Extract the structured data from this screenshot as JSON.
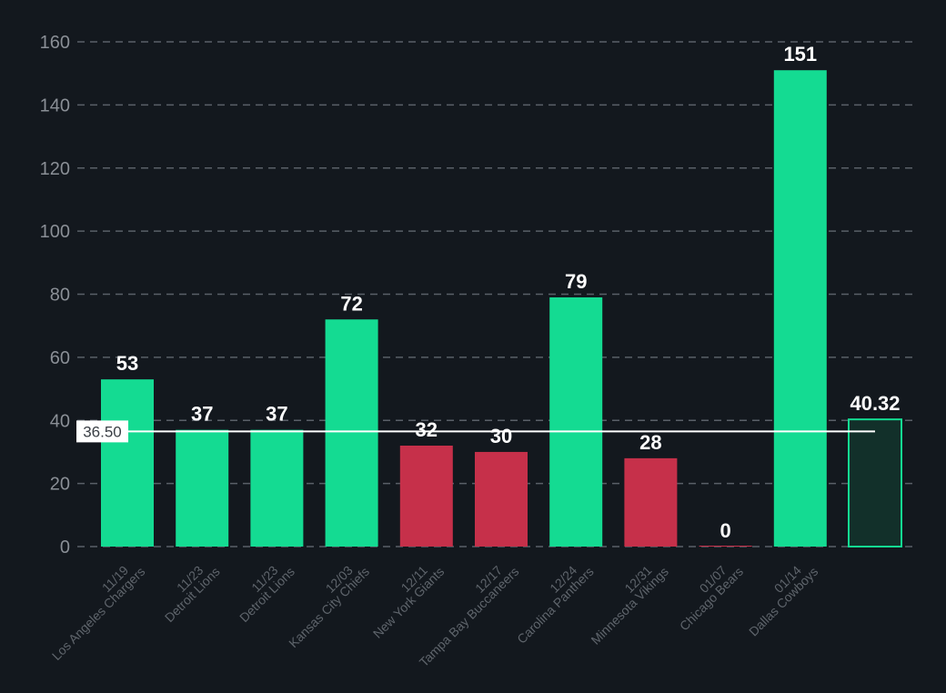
{
  "chart_data": {
    "type": "bar",
    "categories": [
      {
        "date": "11/19",
        "team": "Los Angeles Chargers"
      },
      {
        "date": "11/23",
        "team": "Detroit Lions"
      },
      {
        "date": "11/23",
        "team": "Detroit Lions"
      },
      {
        "date": "12/03",
        "team": "Kansas City Chiefs"
      },
      {
        "date": "12/11",
        "team": "New York Giants"
      },
      {
        "date": "12/17",
        "team": "Tampa Bay Buccaneers"
      },
      {
        "date": "12/24",
        "team": "Carolina Panthers"
      },
      {
        "date": "12/31",
        "team": "Minnesota Vikings"
      },
      {
        "date": "01/07",
        "team": "Chicago Bears"
      },
      {
        "date": "01/14",
        "team": "Dallas Cowboys"
      }
    ],
    "values": [
      53,
      37,
      37,
      72,
      32,
      30,
      79,
      28,
      0,
      151
    ],
    "value_labels": [
      "53",
      "37",
      "37",
      "72",
      "32",
      "30",
      "79",
      "28",
      "0",
      "151"
    ],
    "projection": {
      "value": 40.32,
      "label": "40.32"
    },
    "reference_line": {
      "value": 36.5,
      "label": "36.50"
    },
    "ylim": [
      0,
      160
    ],
    "yticks": [
      0,
      20,
      40,
      60,
      80,
      100,
      120,
      140,
      160
    ],
    "grid": true,
    "colors": {
      "over": "#14db92",
      "under": "#c6304a",
      "projection_fill": "#12302a",
      "projection_stroke": "#14db92",
      "grid": "#5a6068",
      "reference_line": "#ffffff",
      "background": "#13181e"
    }
  }
}
